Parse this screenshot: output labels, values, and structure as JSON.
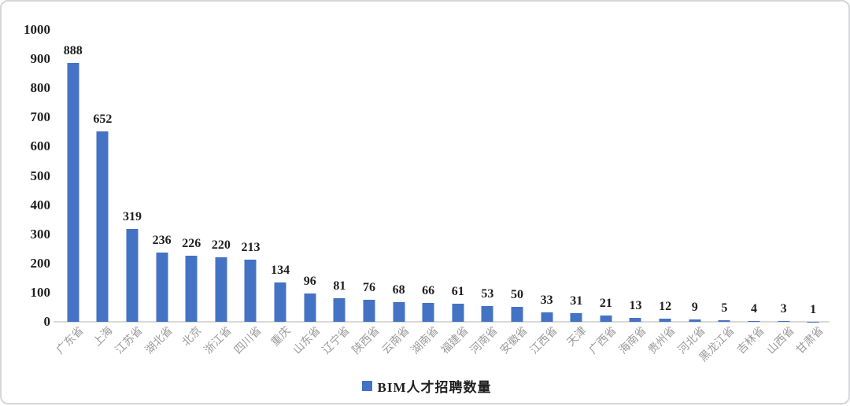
{
  "frame": {
    "background_color": "#ffffff",
    "border_color": "#d4d6d9"
  },
  "chart_data": {
    "type": "bar",
    "title": "",
    "xlabel": "",
    "ylabel": "",
    "categories": [
      "广东省",
      "上海",
      "江苏省",
      "湖北省",
      "北京",
      "浙江省",
      "四川省",
      "重庆",
      "山东省",
      "辽宁省",
      "陕西省",
      "云南省",
      "湖南省",
      "福建省",
      "河南省",
      "安徽省",
      "江西省",
      "天津",
      "广西省",
      "海南省",
      "贵州省",
      "河北省",
      "黑龙江省",
      "吉林省",
      "山西省",
      "甘肃省"
    ],
    "values": [
      888,
      652,
      319,
      236,
      226,
      220,
      213,
      134,
      96,
      81,
      76,
      68,
      66,
      61,
      53,
      50,
      33,
      31,
      21,
      13,
      12,
      9,
      5,
      4,
      3,
      1
    ],
    "value_labels_shown": true,
    "ylim": [
      0,
      1000
    ],
    "ytick_step": 100,
    "grid": false,
    "bar_color": "#4472C4",
    "value_label_color": "#1f1f1f",
    "ytick_color": "#1f1f1f",
    "xtick_color": "#9b9b9b",
    "axis_line_color": "#d9d9d9",
    "legend": {
      "label": "BIM人才招聘数量",
      "position": "bottom",
      "swatch_color": "#4472C4"
    }
  }
}
